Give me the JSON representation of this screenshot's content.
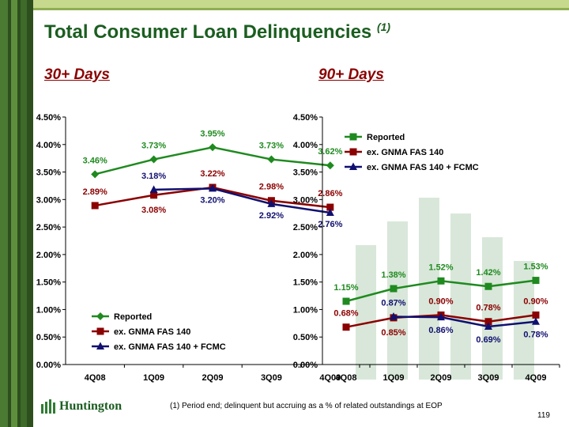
{
  "slide": {
    "title": "Total Consumer Loan Delinquencies",
    "title_note": "(1)",
    "left_heading": "30+ Days",
    "right_heading": "90+ Days",
    "footnote": "(1) Period end; delinquent but accruing as a % of related outstandings at EOP",
    "page_number": "119",
    "logo_text": "Huntington"
  },
  "colors": {
    "reported": "#1f8a1f",
    "ex_gnma": "#8b0000",
    "ex_gnma_fcmc": "#101070",
    "title": "#1b5e20",
    "heading": "#8b0000"
  },
  "chart_data": [
    {
      "type": "line",
      "categories": [
        "4Q08",
        "1Q09",
        "2Q09",
        "3Q09",
        "4Q09"
      ],
      "ylim": [
        0,
        4.5
      ],
      "yticks": [
        "0.00%",
        "0.50%",
        "1.00%",
        "1.50%",
        "2.00%",
        "2.50%",
        "3.00%",
        "3.50%",
        "4.00%",
        "4.50%"
      ],
      "legend_position": "bottom-left",
      "series": [
        {
          "name": "Reported",
          "key": "reported",
          "marker": "diamond",
          "values": [
            3.46,
            3.73,
            3.95,
            3.73,
            3.62
          ],
          "labels": [
            "3.46%",
            "3.73%",
            "3.95%",
            "3.73%",
            "3.62%"
          ]
        },
        {
          "name": "ex. GNMA FAS 140",
          "key": "ex_gnma",
          "marker": "square",
          "values": [
            2.89,
            3.08,
            3.22,
            2.98,
            2.86
          ],
          "labels": [
            "2.89%",
            "3.08%",
            "3.22%",
            "2.98%",
            "2.86%"
          ]
        },
        {
          "name": "ex. GNMA FAS 140 + FCMC",
          "key": "ex_gnma_fcmc",
          "marker": "triangle",
          "values": [
            null,
            3.18,
            3.2,
            2.92,
            2.76
          ],
          "labels": [
            "",
            "3.18%",
            "3.20%",
            "2.92%",
            "2.76%"
          ]
        }
      ]
    },
    {
      "type": "line",
      "categories": [
        "4Q08",
        "1Q09",
        "2Q09",
        "3Q09",
        "4Q09"
      ],
      "ylim": [
        0,
        4.5
      ],
      "yticks": [
        "0.00%",
        "0.50%",
        "1.00%",
        "1.50%",
        "2.00%",
        "2.50%",
        "3.00%",
        "3.50%",
        "4.00%",
        "4.50%"
      ],
      "legend_position": "top-right",
      "series": [
        {
          "name": "Reported",
          "key": "reported",
          "marker": "square",
          "values": [
            1.15,
            1.38,
            1.52,
            1.42,
            1.53
          ],
          "labels": [
            "1.15%",
            "1.38%",
            "1.52%",
            "1.42%",
            "1.53%"
          ]
        },
        {
          "name": "ex. GNMA FAS 140",
          "key": "ex_gnma",
          "marker": "square",
          "values": [
            0.68,
            0.85,
            0.9,
            0.78,
            0.9
          ],
          "labels": [
            "0.68%",
            "0.85%",
            "0.90%",
            "0.78%",
            "0.90%"
          ]
        },
        {
          "name": "ex. GNMA FAS 140 + FCMC",
          "key": "ex_gnma_fcmc",
          "marker": "triangle",
          "values": [
            null,
            0.87,
            0.86,
            0.69,
            0.78
          ],
          "labels": [
            "",
            "0.87%",
            "0.86%",
            "0.69%",
            "0.78%"
          ]
        }
      ]
    }
  ]
}
